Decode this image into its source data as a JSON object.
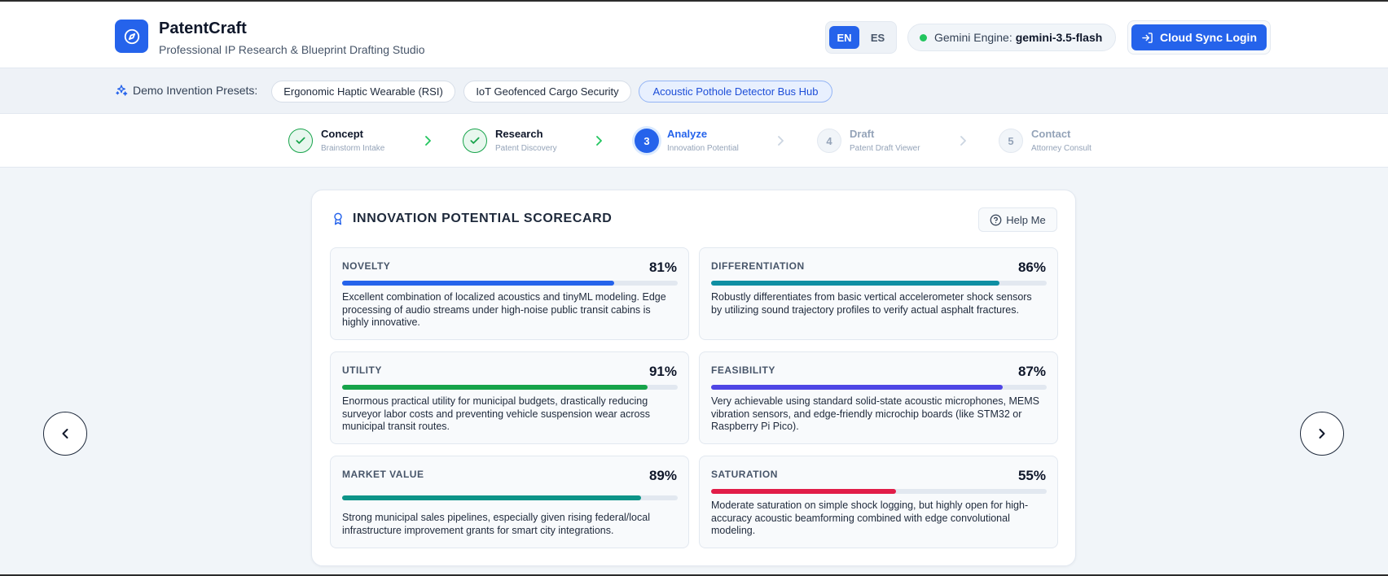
{
  "header": {
    "title": "PatentCraft",
    "subtitle": "Professional IP Research & Blueprint Drafting Studio",
    "logo_icon": "compass-icon",
    "languages": [
      {
        "label": "EN",
        "active": true
      },
      {
        "label": "ES",
        "active": false
      }
    ],
    "engine_label": "Gemini Engine:",
    "engine_value": "gemini-3.5-flash",
    "login_label": "Cloud Sync Login"
  },
  "presets": {
    "label": "Demo Invention Presets:",
    "items": [
      {
        "label": "Ergonomic Haptic Wearable (RSI)",
        "active": false
      },
      {
        "label": "IoT Geofenced Cargo Security",
        "active": false
      },
      {
        "label": "Acoustic Pothole Detector Bus Hub",
        "active": true
      }
    ]
  },
  "steps": [
    {
      "number": "1",
      "title": "Concept",
      "subtitle": "Brainstorm Intake",
      "state": "done"
    },
    {
      "number": "2",
      "title": "Research",
      "subtitle": "Patent Discovery",
      "state": "done"
    },
    {
      "number": "3",
      "title": "Analyze",
      "subtitle": "Innovation Potential",
      "state": "current"
    },
    {
      "number": "4",
      "title": "Draft",
      "subtitle": "Patent Draft Viewer",
      "state": "future"
    },
    {
      "number": "5",
      "title": "Contact",
      "subtitle": "Attorney Consult",
      "state": "future"
    }
  ],
  "scorecard": {
    "title": "INNOVATION POTENTIAL SCORECARD",
    "help_label": "Help Me",
    "metrics": [
      {
        "label": "NOVELTY",
        "value": "81%",
        "percent": 81,
        "color": "#2563eb",
        "description": "Excellent combination of localized acoustics and tinyML modeling. Edge processing of audio streams under high-noise public transit cabins is highly innovative."
      },
      {
        "label": "DIFFERENTIATION",
        "value": "86%",
        "percent": 86,
        "color": "#0e8fa3",
        "description": "Robustly differentiates from basic vertical accelerometer shock sensors by utilizing sound trajectory profiles to verify actual asphalt fractures."
      },
      {
        "label": "UTILITY",
        "value": "91%",
        "percent": 91,
        "color": "#16a34a",
        "description": "Enormous practical utility for municipal budgets, drastically reducing surveyor labor costs and preventing vehicle suspension wear across municipal transit routes."
      },
      {
        "label": "FEASIBILITY",
        "value": "87%",
        "percent": 87,
        "color": "#4f46e5",
        "description": "Very achievable using standard solid-state acoustic microphones, MEMS vibration sensors, and edge-friendly microchip boards (like STM32 or Raspberry Pi Pico)."
      },
      {
        "label": "MARKET VALUE",
        "value": "89%",
        "percent": 89,
        "color": "#0d9488",
        "description": "Strong municipal sales pipelines, especially given rising federal/local infrastructure improvement grants for smart city integrations."
      },
      {
        "label": "SATURATION",
        "value": "55%",
        "percent": 55,
        "color": "#e11d48",
        "description": "Moderate saturation on simple shock logging, but highly open for high-accuracy acoustic beamforming combined with edge convolutional modeling."
      }
    ]
  },
  "navigation": {
    "prev_icon": "chevron-left-icon",
    "next_icon": "chevron-right-icon"
  }
}
